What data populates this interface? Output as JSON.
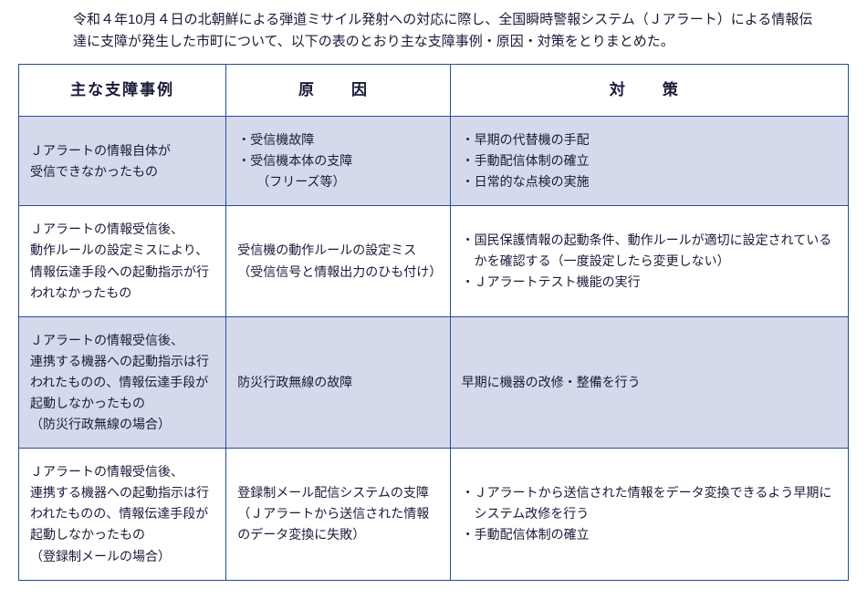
{
  "intro": "令和４年10月４日の北朝鮮による弾道ミサイル発射への対応に際し、全国瞬時警報システム（Ｊアラート）による情報伝達に支障が発生した市町について、以下の表のとおり主な支障事例・原因・対策をとりまとめた。",
  "colors": {
    "border": "#2a4a9a",
    "shaded_bg": "#d4daec",
    "text": "#1a1a3a",
    "background": "#ffffff"
  },
  "table": {
    "headers": {
      "case": "主な支障事例",
      "cause": "原　因",
      "measure": "対　策"
    },
    "rows": [
      {
        "shaded": true,
        "case": "Ｊアラートの情報自体が\n受信できなかったもの",
        "cause": "・受信機故障\n・受信機本体の支障\n　（フリーズ等）",
        "measure": "・早期の代替機の手配\n・手動配信体制の確立\n・日常的な点検の実施"
      },
      {
        "shaded": false,
        "case": "Ｊアラートの情報受信後、\n動作ルールの設定ミスにより、\n情報伝達手段への起動指示が行われなかったもの",
        "cause": "受信機の動作ルールの設定ミス\n（受信信号と情報出力のひも付け）",
        "measure": "・国民保護情報の起動条件、動作ルールが適切に設定されているかを確認する（一度設定したら変更しない）\n・Ｊアラートテスト機能の実行"
      },
      {
        "shaded": true,
        "case": "Ｊアラートの情報受信後、\n連携する機器への起動指示は行われたものの、情報伝達手段が起動しなかったもの\n（防災行政無線の場合）",
        "cause": "防災行政無線の故障",
        "measure": "早期に機器の改修・整備を行う"
      },
      {
        "shaded": false,
        "case": "Ｊアラートの情報受信後、\n連携する機器への起動指示は行われたものの、情報伝達手段が起動しなかったもの\n（登録制メールの場合）",
        "cause": "登録制メール配信システムの支障\n（Ｊアラートから送信された情報のデータ変換に失敗）",
        "measure": "・Ｊアラートから送信された情報をデータ変換できるよう早期にシステム改修を行う\n・手動配信体制の確立"
      }
    ]
  }
}
